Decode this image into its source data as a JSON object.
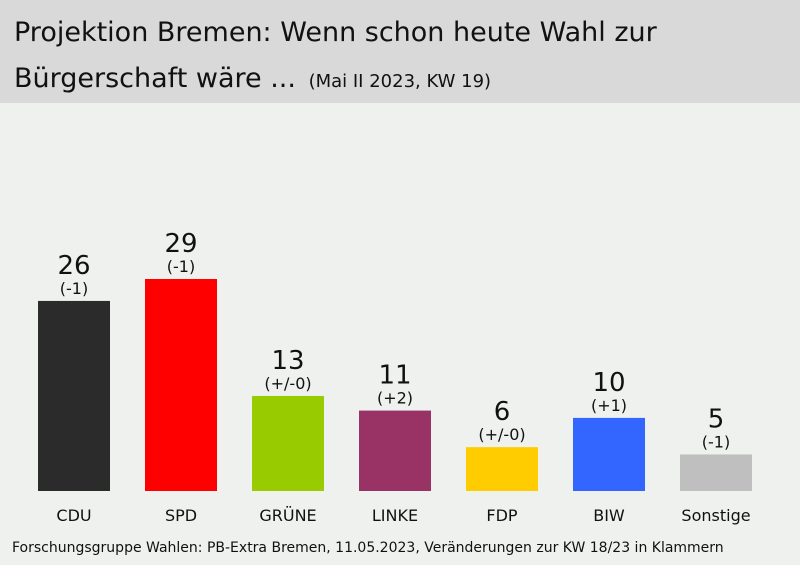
{
  "header": {
    "title_line1": "Projektion Bremen: Wenn schon heute Wahl zur",
    "title_line2": "Bürgerschaft wäre ...",
    "subtitle": "(Mai II 2023, KW 19)"
  },
  "footer": {
    "source": "Forschungsgruppe Wahlen: PB-Extra Bremen, 11.05.2023, Veränderungen zur KW 18/23 in Klammern"
  },
  "chart_data": {
    "type": "bar",
    "categories": [
      "CDU",
      "SPD",
      "GRÜNE",
      "LINKE",
      "FDP",
      "BIW",
      "Sonstige"
    ],
    "values": [
      26,
      29,
      13,
      11,
      6,
      10,
      5
    ],
    "changes": [
      "(-1)",
      "(-1)",
      "(+/-0)",
      "(+2)",
      "(+/-0)",
      "(+1)",
      "(-1)"
    ],
    "colors": [
      "#2b2b2b",
      "#ff0000",
      "#99cc00",
      "#993366",
      "#ffcc00",
      "#3366ff",
      "#bfbfbf"
    ],
    "ylim": [
      0,
      29
    ],
    "grid": false,
    "xlabel": "",
    "ylabel": ""
  }
}
